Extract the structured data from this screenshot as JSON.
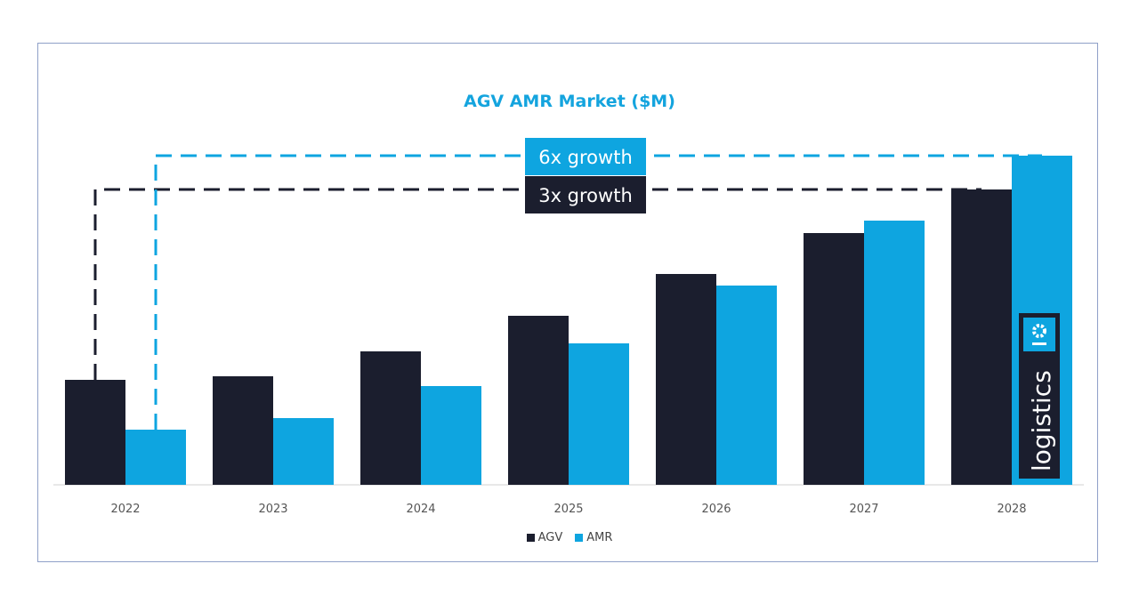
{
  "chart_data": {
    "type": "bar",
    "title": "AGV AMR Market ($M)",
    "categories": [
      "2022",
      "2023",
      "2024",
      "2025",
      "2026",
      "2027",
      "2028"
    ],
    "series": [
      {
        "name": "AGV",
        "color": "#1b1e2e",
        "values": [
          118,
          122,
          150,
          190,
          237,
          283,
          332
        ]
      },
      {
        "name": "AMR",
        "color": "#0ea5e0",
        "values": [
          62,
          75,
          111,
          159,
          224,
          297,
          370
        ]
      }
    ],
    "ylim": [
      0,
      400
    ],
    "grid": false,
    "legend_placement": "bottom",
    "annotations": [
      {
        "text": "6x growth",
        "series": "AMR",
        "color": "#0ea5e0"
      },
      {
        "text": "3x growth",
        "series": "AGV",
        "color": "#1b1e2e"
      }
    ],
    "logo": {
      "text": "logistics",
      "icon": "gear-icon"
    }
  }
}
